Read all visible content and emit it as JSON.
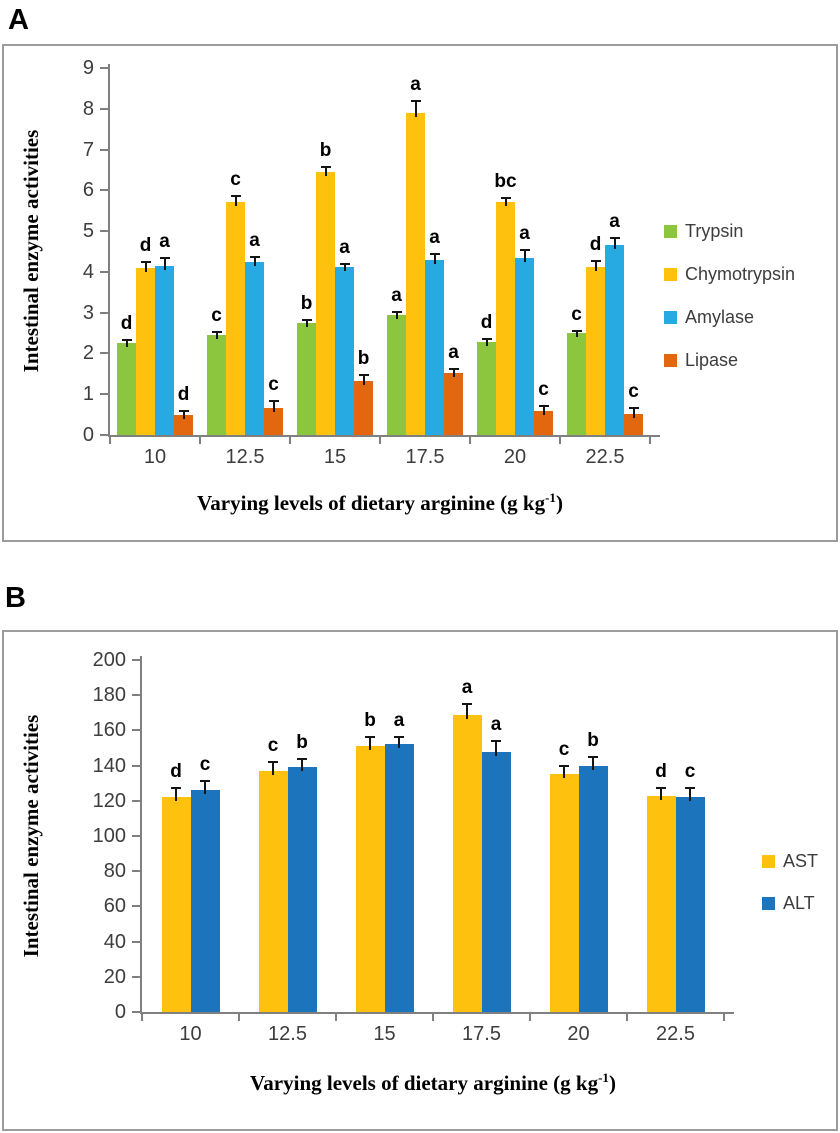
{
  "figure": {
    "panel_a_label": "A",
    "panel_b_label": "B"
  },
  "chart_data": [
    {
      "panel": "A",
      "type": "bar",
      "title": "",
      "ylabel": "Intestinal enzyme activities",
      "xlabel": "Varying levels of dietary arginine (g kg⁻¹)",
      "categories": [
        "10",
        "12.5",
        "15",
        "17.5",
        "20",
        "22.5"
      ],
      "ylim": [
        0,
        9
      ],
      "ytick_step": 1,
      "grid": false,
      "legend_position": "right",
      "error_bars": "upper",
      "series": [
        {
          "name": "Trypsin",
          "color": "#8CC63E",
          "values": [
            2.26,
            2.45,
            2.74,
            2.95,
            2.28,
            2.49
          ],
          "errors": [
            0.08,
            0.07,
            0.09,
            0.06,
            0.07,
            0.07
          ],
          "sig_labels": [
            "d",
            "c",
            "b",
            "a",
            "d",
            "c"
          ]
        },
        {
          "name": "Chymotrypsin",
          "color": "#FEC10D",
          "values": [
            4.1,
            5.72,
            6.46,
            7.9,
            5.72,
            4.12
          ],
          "errors": [
            0.15,
            0.15,
            0.1,
            0.28,
            0.1,
            0.15
          ],
          "sig_labels": [
            "d",
            "c",
            "b",
            "a",
            "bc",
            "d"
          ]
        },
        {
          "name": "Amylase",
          "color": "#27AAE1",
          "values": [
            4.15,
            4.25,
            4.12,
            4.3,
            4.33,
            4.65
          ],
          "errors": [
            0.18,
            0.12,
            0.08,
            0.15,
            0.2,
            0.18
          ],
          "sig_labels": [
            "a",
            "a",
            "a",
            "a",
            "a",
            "a"
          ]
        },
        {
          "name": "Lipase",
          "color": "#E2670E",
          "values": [
            0.48,
            0.65,
            1.33,
            1.52,
            0.58,
            0.52
          ],
          "errors": [
            0.12,
            0.18,
            0.15,
            0.1,
            0.12,
            0.15
          ],
          "sig_labels": [
            "d",
            "c",
            "b",
            "a",
            "c",
            "c"
          ]
        }
      ]
    },
    {
      "panel": "B",
      "type": "bar",
      "title": "",
      "ylabel": "Intestinal enzyme activities",
      "xlabel": "Varying levels of dietary arginine (g kg⁻¹)",
      "categories": [
        "10",
        "12.5",
        "15",
        "17.5",
        "20",
        "22.5"
      ],
      "ylim": [
        0,
        200
      ],
      "ytick_step": 20,
      "grid": false,
      "legend_position": "right",
      "error_bars": "upper",
      "series": [
        {
          "name": "AST",
          "color": "#FEC10D",
          "values": [
            122,
            137,
            151,
            169,
            135,
            123
          ],
          "errors": [
            5,
            5,
            5,
            6,
            5,
            4
          ],
          "sig_labels": [
            "d",
            "c",
            "b",
            "a",
            "c",
            "d"
          ]
        },
        {
          "name": "ALT",
          "color": "#1C75BC",
          "values": [
            126,
            139,
            152,
            148,
            140,
            122
          ],
          "errors": [
            5,
            5,
            4,
            6,
            5,
            5
          ],
          "sig_labels": [
            "c",
            "b",
            "a",
            "a",
            "b",
            "c"
          ]
        }
      ]
    }
  ]
}
